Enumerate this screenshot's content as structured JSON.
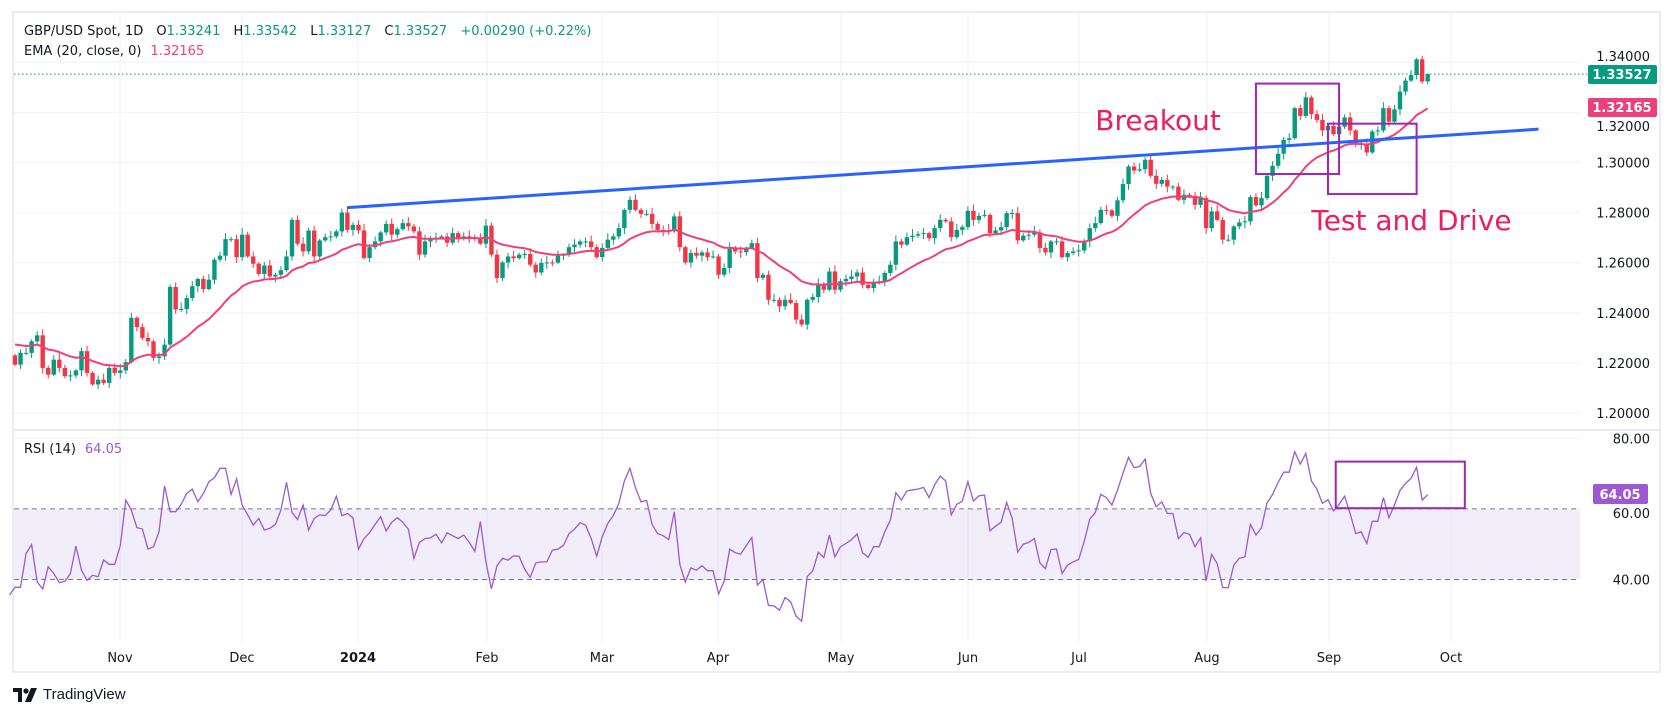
{
  "header": {
    "symbol": "GBP/USD Spot, 1D",
    "o_label": "O",
    "o_value": "1.33241",
    "h_label": "H",
    "h_value": "1.33542",
    "l_label": "L",
    "l_value": "1.33127",
    "c_label": "C",
    "c_value": "1.33527",
    "change": "+0.00290 (+0.22%)",
    "ema_label": "EMA (20, close, 0)",
    "ema_value": "1.32165",
    "rsi_label": "RSI (14)",
    "rsi_value": "64.05"
  },
  "branding": {
    "name": "TradingView"
  },
  "colors": {
    "up": "#089981",
    "down": "#F23645",
    "ema": "#F23F7A",
    "trend": "#2962FF",
    "box": "#9C27B0",
    "annotation": "#E91E63",
    "rsi": "#9C59D1"
  },
  "chart_data": {
    "type": "candlestick",
    "title": "GBP/USD Spot, 1D",
    "price_axis": {
      "ticks": [
        "1.34000",
        "1.32000",
        "1.30000",
        "1.28000",
        "1.26000",
        "1.24000",
        "1.22000",
        "1.20000"
      ],
      "range": [
        1.195,
        1.347
      ]
    },
    "time_axis": {
      "ticks": [
        "Nov",
        "Dec",
        "2024",
        "Feb",
        "Mar",
        "Apr",
        "May",
        "Jun",
        "Jul",
        "Aug",
        "Sep",
        "Oct"
      ],
      "bold": [
        "2024"
      ]
    },
    "last_candle": {
      "open": 1.33241,
      "high": 1.33542,
      "low": 1.33127,
      "close": 1.33527
    },
    "current_price_label": "1.33527",
    "ema_price_label": "1.32165",
    "ema_period": 20,
    "closes": [
      1.2193,
      1.224,
      1.224,
      1.2286,
      1.231,
      1.218,
      1.2153,
      1.2213,
      1.218,
      1.2147,
      1.215,
      1.217,
      1.2247,
      1.216,
      1.2114,
      1.2133,
      1.212,
      1.218,
      1.216,
      1.217,
      1.2203,
      1.238,
      1.2343,
      1.23,
      1.2286,
      1.222,
      1.2226,
      1.2273,
      1.2503,
      1.2413,
      1.2415,
      1.2459,
      1.2506,
      1.2535,
      1.2495,
      1.2532,
      1.2612,
      1.2628,
      1.2694,
      1.2694,
      1.2622,
      1.2712,
      1.2625,
      1.2596,
      1.2555,
      1.2589,
      1.2545,
      1.2552,
      1.257,
      1.2625,
      1.2771,
      1.2676,
      1.2645,
      1.2728,
      1.2625,
      1.2689,
      1.2702,
      1.2705,
      1.2725,
      1.28,
      1.2731,
      1.2751,
      1.2729,
      1.2619,
      1.2662,
      1.2685,
      1.2721,
      1.2755,
      1.2712,
      1.2734,
      1.2758,
      1.2745,
      1.2725,
      1.2632,
      1.2685,
      1.2694,
      1.27,
      1.2705,
      1.268,
      1.2718,
      1.27,
      1.2705,
      1.2702,
      1.27,
      1.2676,
      1.2748,
      1.2632,
      1.2539,
      1.2601,
      1.2625,
      1.2618,
      1.2632,
      1.2635,
      1.2592,
      1.2561,
      1.2599,
      1.2601,
      1.26,
      1.2628,
      1.2632,
      1.2662,
      1.2672,
      1.2685,
      1.2685,
      1.2662,
      1.2622,
      1.2659,
      1.2692,
      1.2705,
      1.2738,
      1.2811,
      1.2851,
      1.2811,
      1.2795,
      1.2795,
      1.2755,
      1.2731,
      1.2729,
      1.2725,
      1.2785,
      1.2662,
      1.2601,
      1.2639,
      1.2628,
      1.2641,
      1.2622,
      1.2625,
      1.2552,
      1.2579,
      1.2655,
      1.2645,
      1.2642,
      1.2659,
      1.2678,
      1.2539,
      1.2552,
      1.2452,
      1.2452,
      1.2426,
      1.2452,
      1.2439,
      1.2373,
      1.2353,
      1.2452,
      1.2463,
      1.2515,
      1.2492,
      1.2565,
      1.2492,
      1.2526,
      1.2535,
      1.2545,
      1.2561,
      1.2512,
      1.2499,
      1.2522,
      1.2526,
      1.2559,
      1.2592,
      1.2685,
      1.2672,
      1.2702,
      1.2708,
      1.2714,
      1.2718,
      1.2698,
      1.2738,
      1.2771,
      1.2765,
      1.2702,
      1.2731,
      1.2742,
      1.2807,
      1.2771,
      1.2787,
      1.2791,
      1.2718,
      1.2729,
      1.2742,
      1.2798,
      1.2798,
      1.2689,
      1.2708,
      1.2712,
      1.2721,
      1.2659,
      1.2641,
      1.2685,
      1.2685,
      1.2622,
      1.2639,
      1.2645,
      1.2649,
      1.2685,
      1.2738,
      1.2758,
      1.2811,
      1.2809,
      1.2787,
      1.2849,
      1.2914,
      1.2984,
      1.2968,
      1.2973,
      1.3011,
      1.2947,
      1.2915,
      1.2931,
      1.2904,
      1.2904,
      1.2851,
      1.2871,
      1.2867,
      1.2831,
      1.2858,
      1.2738,
      1.2805,
      1.2771,
      1.2692,
      1.2692,
      1.2745,
      1.2761,
      1.2765,
      1.2862,
      1.2829,
      1.2858,
      1.2947,
      1.2987,
      1.3035,
      1.309,
      1.3097,
      1.3217,
      1.3186,
      1.326,
      1.3193,
      1.317,
      1.3128,
      1.3146,
      1.3113,
      1.3143,
      1.318,
      1.3128,
      1.3074,
      1.3074,
      1.304,
      1.3124,
      1.3128,
      1.3217,
      1.3163,
      1.3212,
      1.3283,
      1.3327,
      1.3349,
      1.3412,
      1.3323,
      1.33527
    ],
    "rsi": {
      "axis_ticks": [
        "80.00",
        "60.00",
        "40.00"
      ],
      "bands": [
        40,
        60
      ],
      "values": [
        35.6,
        37.8,
        37.8,
        47.4,
        49.9,
        39.3,
        37.3,
        43.6,
        41.7,
        39.1,
        39.5,
        41.7,
        49.5,
        42.6,
        39.8,
        41.2,
        40.8,
        45.5,
        44.3,
        44.3,
        49.6,
        62.5,
        59.7,
        54.7,
        54.3,
        48.6,
        49.3,
        53.5,
        66.5,
        59.2,
        59.2,
        61.3,
        64.4,
        65.6,
        62.0,
        64.4,
        67.7,
        68.8,
        71.5,
        71.5,
        64.1,
        68.5,
        61.1,
        58.3,
        55.4,
        57.3,
        54.0,
        54.5,
        55.6,
        59.7,
        67.5,
        59.0,
        57.0,
        61.1,
        54.0,
        57.3,
        58.3,
        58.1,
        59.7,
        63.6,
        58.1,
        58.7,
        57.5,
        48.6,
        51.6,
        53.3,
        55.6,
        57.8,
        53.7,
        56.2,
        57.5,
        56.2,
        54.3,
        46.0,
        50.5,
        51.6,
        51.8,
        52.8,
        50.4,
        53.2,
        52.4,
        51.6,
        52.6,
        50.5,
        48.0,
        56.4,
        45.0,
        37.3,
        43.9,
        46.0,
        45.5,
        46.7,
        46.6,
        42.9,
        40.6,
        44.7,
        45.0,
        45.0,
        48.3,
        48.6,
        49.7,
        53.0,
        54.3,
        56.1,
        55.4,
        51.6,
        46.6,
        52.1,
        55.9,
        58.1,
        61.6,
        67.9,
        71.5,
        66.0,
        62.0,
        62.4,
        55.6,
        53.0,
        52.4,
        51.3,
        59.2,
        44.3,
        39.3,
        43.3,
        42.6,
        43.9,
        42.5,
        42.5,
        35.9,
        39.5,
        48.6,
        47.6,
        47.2,
        49.6,
        51.9,
        38.4,
        40.0,
        32.7,
        32.5,
        31.3,
        34.9,
        33.7,
        29.6,
        28.2,
        40.8,
        42.5,
        47.7,
        46.2,
        52.6,
        46.4,
        49.3,
        50.2,
        51.3,
        52.9,
        47.6,
        46.3,
        49.3,
        49.3,
        53.5,
        56.8,
        64.6,
        62.5,
        65.1,
        65.4,
        65.6,
        66.1,
        63.2,
        66.8,
        69.3,
        67.9,
        58.3,
        61.3,
        62.2,
        67.7,
        62.2,
        63.7,
        63.9,
        53.8,
        55.1,
        56.2,
        61.8,
        57.3,
        47.8,
        50.0,
        50.5,
        51.6,
        44.7,
        43.1,
        48.5,
        48.6,
        41.7,
        44.1,
        45.0,
        45.7,
        50.7,
        57.1,
        59.0,
        64.1,
        63.2,
        61.1,
        65.3,
        70.1,
        74.6,
        71.7,
        72.0,
        74.1,
        64.4,
        60.6,
        62.0,
        58.7,
        58.7,
        51.6,
        53.3,
        52.8,
        49.3,
        51.8,
        39.6,
        47.1,
        44.5,
        37.7,
        37.7,
        44.1,
        46.0,
        46.4,
        55.6,
        52.6,
        54.7,
        61.7,
        64.1,
        67.5,
        70.4,
        70.4,
        76.2,
        72.7,
        75.7,
        67.9,
        65.6,
        61.6,
        62.6,
        59.4,
        61.3,
        63.6,
        58.7,
        53.0,
        53.5,
        50.2,
        56.5,
        56.5,
        63.2,
        57.5,
        61.1,
        65.2,
        67.2,
        68.7,
        71.8,
        62.5,
        64.05
      ],
      "current_label": "64.05",
      "box": {
        "from_bar": 238.4,
        "to_bar": 261.7,
        "rsi_range": [
          60.2,
          73.4
        ]
      }
    },
    "trendline": {
      "from_bar": 60,
      "from_price": 1.282,
      "to_bar": 275,
      "to_price": 1.3133
    },
    "annotations": [
      {
        "text": "Breakout",
        "bar": 195,
        "price": 1.313
      },
      {
        "text": "Test and Drive",
        "bar": 234,
        "price": 1.273
      }
    ],
    "boxes": [
      {
        "name": "breakout-box",
        "from_bar": 224,
        "to_bar": 239,
        "price_range": [
          1.2954,
          1.3315
        ]
      },
      {
        "name": "test-and-drive-box",
        "from_bar": 237,
        "to_bar": 253,
        "price_range": [
          1.2874,
          1.3155
        ]
      }
    ]
  }
}
